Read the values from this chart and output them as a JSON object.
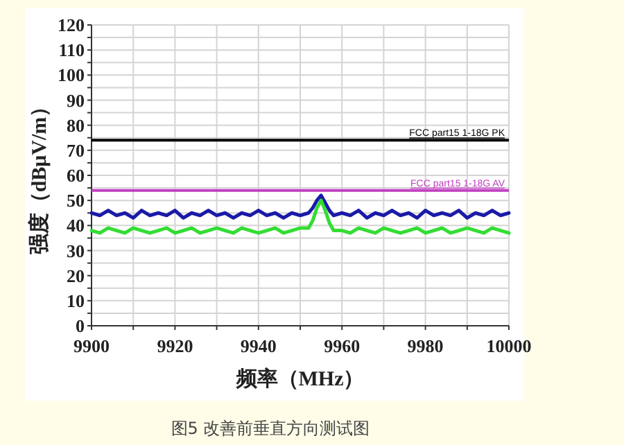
{
  "chart_data": {
    "type": "line",
    "xlabel": "频率（MHz）",
    "ylabel": "强度（dBμV/m）",
    "xlim": [
      9900,
      10000
    ],
    "ylim": [
      0,
      120
    ],
    "xticks": [
      9900,
      {
        "value": 9910,
        "label": null
      },
      9920,
      {
        "value": 9930,
        "label": null
      },
      9940,
      {
        "value": 9950,
        "label": null
      },
      9960,
      {
        "value": 9970,
        "label": null
      },
      9980,
      {
        "value": 9990,
        "label": null
      },
      10000
    ],
    "yticks": [
      0,
      {
        "value": 5,
        "label": null
      },
      10,
      {
        "value": 15,
        "label": null
      },
      20,
      {
        "value": 25,
        "label": null
      },
      30,
      {
        "value": 35,
        "label": null
      },
      40,
      {
        "value": 45,
        "label": null
      },
      50,
      {
        "value": 55,
        "label": null
      },
      60,
      {
        "value": 65,
        "label": null
      },
      70,
      {
        "value": 75,
        "label": null
      },
      80,
      {
        "value": 85,
        "label": null
      },
      90,
      {
        "value": 95,
        "label": null
      },
      100,
      {
        "value": 105,
        "label": null
      },
      110,
      {
        "value": 115,
        "label": null
      },
      120
    ],
    "grid": true,
    "series": [
      {
        "color": "#1a1aa8",
        "x": [
          9900,
          9902,
          9904,
          9906,
          9908,
          9910,
          9912,
          9914,
          9916,
          9918,
          9920,
          9922,
          9924,
          9926,
          9928,
          9930,
          9932,
          9934,
          9936,
          9938,
          9940,
          9942,
          9944,
          9946,
          9948,
          9950,
          9952,
          9953,
          9954,
          9955,
          9956,
          9957,
          9958,
          9960,
          9962,
          9964,
          9966,
          9968,
          9970,
          9972,
          9974,
          9976,
          9978,
          9980,
          9982,
          9984,
          9986,
          9988,
          9990,
          9992,
          9994,
          9996,
          9998,
          10000
        ],
        "values": [
          45,
          44,
          46,
          44,
          45,
          43,
          46,
          44,
          45,
          44,
          46,
          43,
          45,
          44,
          46,
          44,
          45,
          43,
          45,
          44,
          46,
          44,
          45,
          43,
          45,
          44,
          45,
          47,
          50,
          52,
          49,
          46,
          44,
          45,
          44,
          46,
          43,
          45,
          44,
          46,
          44,
          45,
          43,
          46,
          44,
          45,
          44,
          46,
          43,
          45,
          44,
          46,
          44,
          45
        ]
      },
      {
        "color": "#33dd33",
        "x": [
          9900,
          9902,
          9904,
          9906,
          9908,
          9910,
          9912,
          9914,
          9916,
          9918,
          9920,
          9922,
          9924,
          9926,
          9928,
          9930,
          9932,
          9934,
          9936,
          9938,
          9940,
          9942,
          9944,
          9946,
          9948,
          9950,
          9952,
          9953,
          9954,
          9955,
          9956,
          9957,
          9958,
          9960,
          9962,
          9964,
          9966,
          9968,
          9970,
          9972,
          9974,
          9976,
          9978,
          9980,
          9982,
          9984,
          9986,
          9988,
          9990,
          9992,
          9994,
          9996,
          9998,
          10000
        ],
        "values": [
          38,
          37,
          39,
          38,
          37,
          39,
          38,
          37,
          38,
          39,
          37,
          38,
          39,
          37,
          38,
          39,
          38,
          37,
          39,
          38,
          37,
          38,
          39,
          37,
          38,
          39,
          39,
          42,
          47,
          50,
          46,
          41,
          38,
          38,
          37,
          39,
          38,
          37,
          39,
          38,
          37,
          38,
          39,
          37,
          38,
          39,
          37,
          38,
          39,
          38,
          37,
          39,
          38,
          37
        ]
      }
    ],
    "ref_lines": [
      {
        "axis": "y",
        "value": 74,
        "label": "FCC part15 1-18G PK",
        "color": "#000000"
      },
      {
        "axis": "y",
        "value": 54,
        "label": "FCC part15 1-18G AV",
        "color": "#c040c0"
      }
    ],
    "annotations": [
      "图5 改善前垂直方向测试图"
    ]
  }
}
